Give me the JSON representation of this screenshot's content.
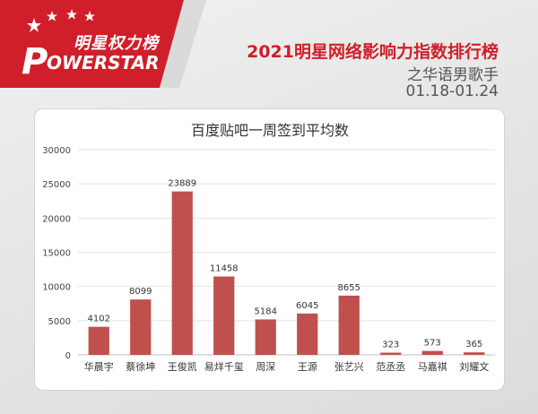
{
  "brand": {
    "name_cn": "明星权力榜",
    "name_en": "OWERSTAR",
    "logo_letter": "P",
    "red": "#d01f2a"
  },
  "header": {
    "title": "2021明星网络影响力指数排行榜",
    "subtitle": "之华语男歌手",
    "date_range": "01.18-01.24"
  },
  "chart_data": {
    "type": "bar",
    "title": "百度贴吧一周签到平均数",
    "categories": [
      "华晨宇",
      "蔡徐坤",
      "王俊凯",
      "易烊千玺",
      "周深",
      "王源",
      "张艺兴",
      "范丞丞",
      "马嘉祺",
      "刘耀文"
    ],
    "values": [
      4102,
      8099,
      23889,
      11458,
      5184,
      6045,
      8655,
      323,
      573,
      365
    ],
    "ylim": [
      0,
      30000
    ],
    "yticks": [
      0,
      5000,
      10000,
      15000,
      20000,
      25000,
      30000
    ],
    "grid": true,
    "bar_color": "#c0504d",
    "xlabel": "",
    "ylabel": ""
  }
}
